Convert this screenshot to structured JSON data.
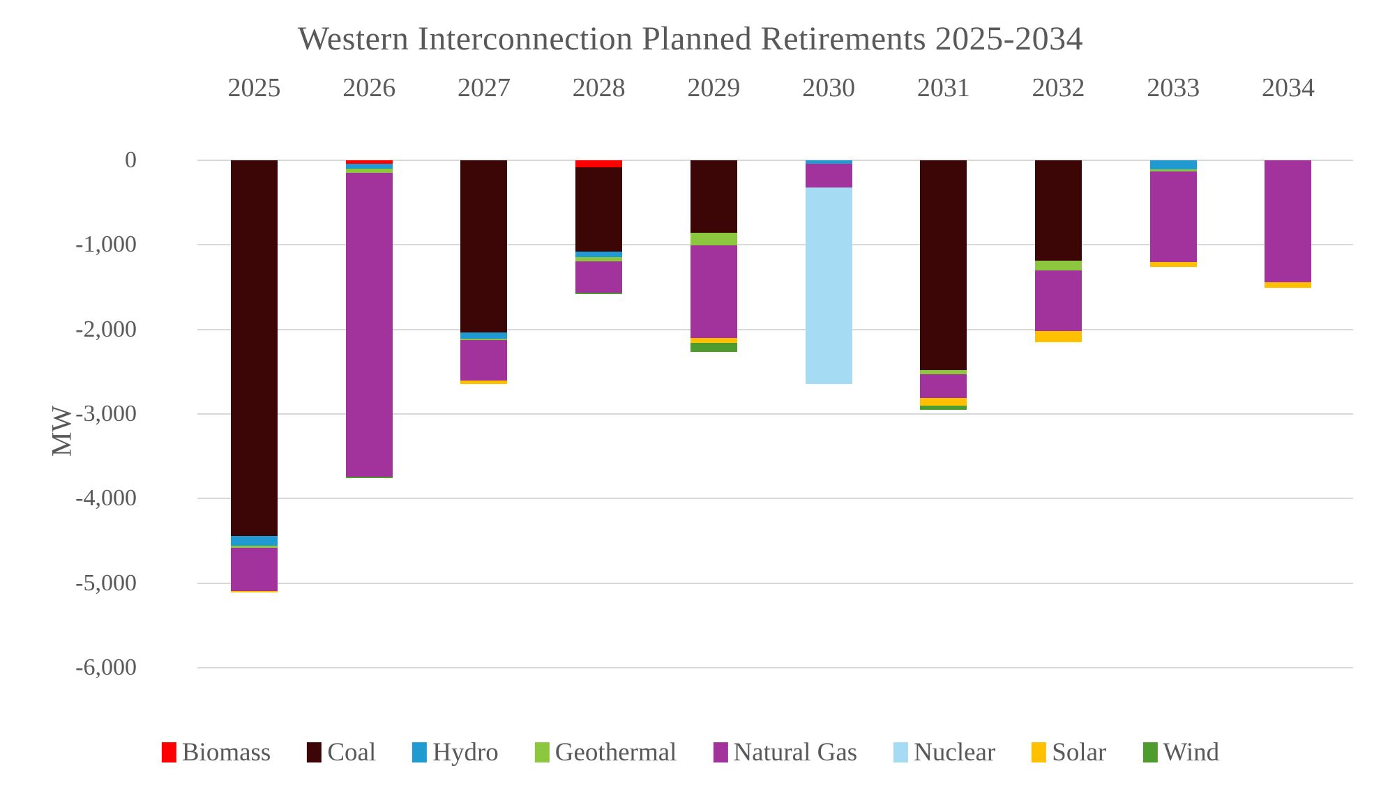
{
  "chart_data": {
    "type": "bar",
    "variant": "stacked-vertical-negative",
    "title": "Western Interconnection Planned Retirements 2025-2034",
    "ylabel": "MW",
    "xlabel": "",
    "ylim": [
      -6000,
      0
    ],
    "grid": true,
    "legend_position": "bottom",
    "yticks": [
      {
        "value": 0,
        "label": "0"
      },
      {
        "value": -1000,
        "label": "-1,000"
      },
      {
        "value": -2000,
        "label": "-2,000"
      },
      {
        "value": -3000,
        "label": "-3,000"
      },
      {
        "value": -4000,
        "label": "-4,000"
      },
      {
        "value": -5000,
        "label": "-5,000"
      },
      {
        "value": -6000,
        "label": "-6,000"
      }
    ],
    "categories": [
      "2025",
      "2026",
      "2027",
      "2028",
      "2029",
      "2030",
      "2031",
      "2032",
      "2033",
      "2034"
    ],
    "series": [
      {
        "name": "Biomass",
        "color": "#FF0000",
        "values": [
          0,
          -40,
          0,
          -80,
          0,
          0,
          0,
          0,
          0,
          0
        ]
      },
      {
        "name": "Coal",
        "color": "#3B0605",
        "values": [
          -4440,
          0,
          -2040,
          -1000,
          -860,
          0,
          -2480,
          -1190,
          0,
          0
        ]
      },
      {
        "name": "Hydro",
        "color": "#2199D1",
        "values": [
          -120,
          -60,
          -70,
          -65,
          0,
          -40,
          0,
          0,
          -110,
          0
        ]
      },
      {
        "name": "Geothermal",
        "color": "#8DC63F",
        "values": [
          -25,
          -45,
          -20,
          -50,
          -145,
          0,
          -50,
          -110,
          -25,
          0
        ]
      },
      {
        "name": "Natural Gas",
        "color": "#A2339C",
        "values": [
          -510,
          -3600,
          -475,
          -370,
          -1100,
          -285,
          -280,
          -720,
          -1065,
          -1440
        ]
      },
      {
        "name": "Nuclear",
        "color": "#A6DBF4",
        "values": [
          0,
          0,
          0,
          0,
          0,
          -2320,
          0,
          0,
          0,
          0
        ]
      },
      {
        "name": "Solar",
        "color": "#FFC000",
        "values": [
          -15,
          0,
          -45,
          0,
          -55,
          0,
          -90,
          -130,
          -65,
          -65
        ]
      },
      {
        "name": "Wind",
        "color": "#4E9C2D",
        "values": [
          0,
          -15,
          0,
          -15,
          -105,
          0,
          -50,
          0,
          0,
          0
        ]
      }
    ],
    "totals_by_year": [
      -5110,
      -3760,
      -2650,
      -1580,
      -2265,
      -2645,
      -2950,
      -2150,
      -1265,
      -1505
    ]
  }
}
